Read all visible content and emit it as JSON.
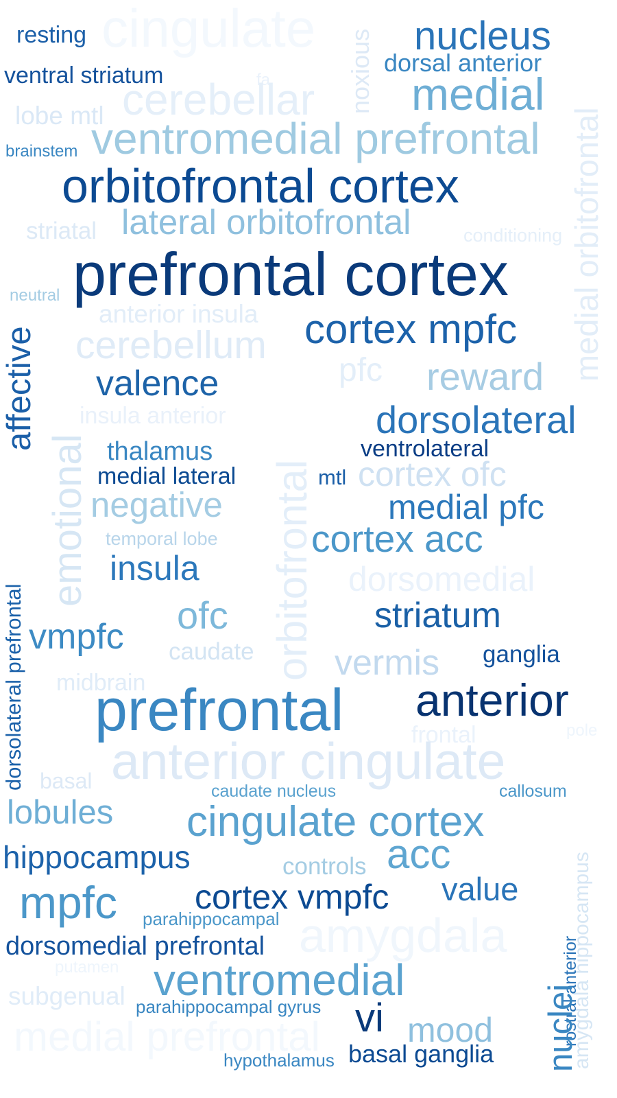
{
  "words": [
    {
      "text": "cingulate",
      "color": "#f3f8fd"
    },
    {
      "text": "resting",
      "color": "#1b5fa8"
    },
    {
      "text": "nucleus",
      "color": "#2a74b8"
    },
    {
      "text": "dorsal anterior",
      "color": "#3a87c2"
    },
    {
      "text": "noxious",
      "color": "#dde9f6"
    },
    {
      "text": "ventral striatum",
      "color": "#14529c"
    },
    {
      "text": "fa",
      "color": "#eaf2fb"
    },
    {
      "text": "medial",
      "color": "#6eaed5"
    },
    {
      "text": "cerebellar",
      "color": "#e5eff9"
    },
    {
      "text": "medial orbitofrontal",
      "color": "#e2edf8"
    },
    {
      "text": "lobe mtl",
      "color": "#dae8f6"
    },
    {
      "text": "brainstem",
      "color": "#3a87c2"
    },
    {
      "text": "ventromedial prefrontal",
      "color": "#9fcae1"
    },
    {
      "text": "orbitofrontal cortex",
      "color": "#0c4a92"
    },
    {
      "text": "striatal",
      "color": "#dce9f6"
    },
    {
      "text": "lateral orbitofrontal",
      "color": "#8fc0de"
    },
    {
      "text": "conditioning",
      "color": "#e5eff9"
    },
    {
      "text": "prefrontal cortex",
      "color": "#0a3a7a"
    },
    {
      "text": "neutral",
      "color": "#a4cce3"
    },
    {
      "text": "anterior insula",
      "color": "#e2edf8"
    },
    {
      "text": "cortex mpfc",
      "color": "#1c62aa"
    },
    {
      "text": "affective",
      "color": "#1b5fa8"
    },
    {
      "text": "cerebellum",
      "color": "#dfebf7"
    },
    {
      "text": "pfc",
      "color": "#e3eef9"
    },
    {
      "text": "reward",
      "color": "#a7cce3"
    },
    {
      "text": "emotional",
      "color": "#d6e6f4"
    },
    {
      "text": "orbitofrontal",
      "color": "#e3eef9"
    },
    {
      "text": "valence",
      "color": "#1d63a8"
    },
    {
      "text": "insula anterior",
      "color": "#e9f1fa"
    },
    {
      "text": "dorsolateral",
      "color": "#2a74b8"
    },
    {
      "text": "thalamus",
      "color": "#3a87c2"
    },
    {
      "text": "ventrolateral",
      "color": "#0a3d85"
    },
    {
      "text": "medial lateral",
      "color": "#0c4a92"
    },
    {
      "text": "mtl",
      "color": "#1b5fa8"
    },
    {
      "text": "cortex ofc",
      "color": "#cfe1f2"
    },
    {
      "text": "negative",
      "color": "#a4cce3"
    },
    {
      "text": "medial pfc",
      "color": "#2c78bb"
    },
    {
      "text": "temporal lobe",
      "color": "#b8d5ea"
    },
    {
      "text": "cortex acc",
      "color": "#4b97c9"
    },
    {
      "text": "dorsolateral prefrontal",
      "color": "#1c62aa"
    },
    {
      "text": "insula",
      "color": "#2c78bb"
    },
    {
      "text": "dorsomedial",
      "color": "#eaf2fb"
    },
    {
      "text": "ofc",
      "color": "#7db8da"
    },
    {
      "text": "striatum",
      "color": "#1a60a6"
    },
    {
      "text": "vmpfc",
      "color": "#3d8bc4"
    },
    {
      "text": "caudate",
      "color": "#d3e4f3"
    },
    {
      "text": "ganglia",
      "color": "#14529c"
    },
    {
      "text": "vermis",
      "color": "#c2d9ee"
    },
    {
      "text": "midbrain",
      "color": "#e0ecf8"
    },
    {
      "text": "prefrontal",
      "color": "#3a87c2"
    },
    {
      "text": "anterior",
      "color": "#083370"
    },
    {
      "text": "frontal",
      "color": "#eaf2fb"
    },
    {
      "text": "pole",
      "color": "#eef5fc"
    },
    {
      "text": "anterior cingulate",
      "color": "#dde9f6"
    },
    {
      "text": "basal",
      "color": "#dde9f6"
    },
    {
      "text": "caudate nucleus",
      "color": "#5aa2cf"
    },
    {
      "text": "callosum",
      "color": "#4b97c9"
    },
    {
      "text": "lobules",
      "color": "#6eaed5"
    },
    {
      "text": "cingulate cortex",
      "color": "#5aa2cf"
    },
    {
      "text": "hippocampus",
      "color": "#1c62aa"
    },
    {
      "text": "acc",
      "color": "#5fa6d1"
    },
    {
      "text": "controls",
      "color": "#a4cce3"
    },
    {
      "text": "amygdala hippocampus",
      "color": "#d6e6f4"
    },
    {
      "text": "mpfc",
      "color": "#4b97c9"
    },
    {
      "text": "cortex vmpfc",
      "color": "#0c4a92"
    },
    {
      "text": "value",
      "color": "#2a74b8"
    },
    {
      "text": "parahippocampal",
      "color": "#4b97c9"
    },
    {
      "text": "amygdala",
      "color": "#f0f6fc"
    },
    {
      "text": "rostral anterior",
      "color": "#2a74b8"
    },
    {
      "text": "dorsomedial prefrontal",
      "color": "#14529c"
    },
    {
      "text": "putamen",
      "color": "#eef5fc"
    },
    {
      "text": "ventromedial",
      "color": "#5aa2cf"
    },
    {
      "text": "nuclei",
      "color": "#3a87c2"
    },
    {
      "text": "subgenual",
      "color": "#e0ecf8"
    },
    {
      "text": "parahippocampal gyrus",
      "color": "#3a87c2"
    },
    {
      "text": "vi",
      "color": "#0a3a7a"
    },
    {
      "text": "mood",
      "color": "#8fc0de"
    },
    {
      "text": "medial prefrontal",
      "color": "#f3f8fd"
    },
    {
      "text": "hypothalamus",
      "color": "#3a87c2"
    },
    {
      "text": "basal ganglia",
      "color": "#0c4a92"
    }
  ]
}
